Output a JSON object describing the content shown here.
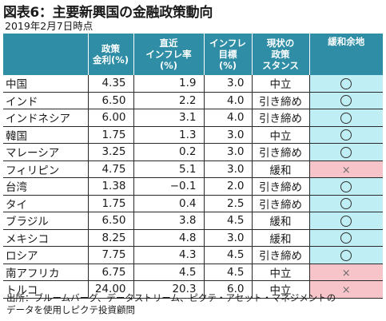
{
  "title": "図表6：主要新興国の金融政策動向",
  "date": "2019年2月7日時点",
  "headers": {
    "rate": [
      "政策",
      "金利(%)"
    ],
    "inflation": [
      "直近",
      "インフレ率",
      "(%)"
    ],
    "target": [
      "インフレ",
      "目標",
      "(%)"
    ],
    "stance": [
      "現状の",
      "政策",
      "スタンス"
    ],
    "easing": [
      "緩和余地"
    ]
  },
  "rows": [
    {
      "country": "中国",
      "rate": "4.35",
      "inflation": "1.9",
      "target": "3.0",
      "stance": "中立",
      "easing": "ok"
    },
    {
      "country": "インド",
      "rate": "6.50",
      "inflation": "2.2",
      "target": "4.0",
      "stance": "引き締め",
      "easing": "ok"
    },
    {
      "country": "インドネシア",
      "rate": "6.00",
      "inflation": "3.1",
      "target": "4.0",
      "stance": "引き締め",
      "easing": "ok"
    },
    {
      "country": "韓国",
      "rate": "1.75",
      "inflation": "1.3",
      "target": "3.0",
      "stance": "中立",
      "easing": "ok"
    },
    {
      "country": "マレーシア",
      "rate": "3.25",
      "inflation": "0.2",
      "target": "3.0",
      "stance": "引き締め",
      "easing": "ok"
    },
    {
      "country": "フィリピン",
      "rate": "4.75",
      "inflation": "5.1",
      "target": "3.0",
      "stance": "緩和",
      "easing": "ng"
    },
    {
      "country": "台湾",
      "rate": "1.38",
      "inflation": "−0.1",
      "target": "2.0",
      "stance": "引き締め",
      "easing": "ok"
    },
    {
      "country": "タイ",
      "rate": "1.75",
      "inflation": "0.4",
      "target": "2.5",
      "stance": "引き締め",
      "easing": "ok"
    },
    {
      "country": "ブラジル",
      "rate": "6.50",
      "inflation": "3.8",
      "target": "4.5",
      "stance": "緩和",
      "easing": "ok"
    },
    {
      "country": "メキシコ",
      "rate": "8.25",
      "inflation": "4.8",
      "target": "3.0",
      "stance": "緩和",
      "easing": "ok"
    },
    {
      "country": "ロシア",
      "rate": "7.75",
      "inflation": "4.3",
      "target": "4.5",
      "stance": "引き締め",
      "easing": "ok"
    },
    {
      "country": "南アフリカ",
      "rate": "6.75",
      "inflation": "4.5",
      "target": "4.5",
      "stance": "中立",
      "easing": "ng"
    },
    {
      "country": "トルコ",
      "rate": "24.00",
      "inflation": "20.3",
      "target": "6.0",
      "stance": "中立",
      "easing": "ng"
    }
  ],
  "marks": {
    "ok": "○",
    "ng": "×"
  },
  "source_lines": [
    "出所：ブルームバーグ、データストリーム、ピクテ・アセット・マネジメントの",
    "データを使用しピクテ投資顧問"
  ],
  "colors": {
    "header_bg": "#2f8ea6",
    "ok_bg": "#bfeff5",
    "ng_bg": "#f7c4c9"
  }
}
